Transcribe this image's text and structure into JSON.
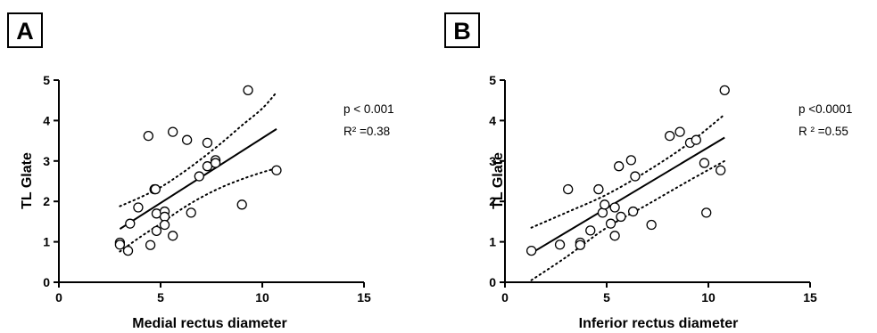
{
  "chart_data": [
    {
      "type": "scatter",
      "panel": "A",
      "xlabel": "Medial rectus diameter",
      "ylabel": "TL Glate",
      "xlim": [
        0,
        15
      ],
      "ylim": [
        0,
        5
      ],
      "xticks": [
        0,
        5,
        10,
        15
      ],
      "yticks": [
        0,
        1,
        2,
        3,
        4,
        5
      ],
      "annotations": [
        "p < 0.001",
        "R² =0.38"
      ],
      "points": [
        {
          "x": 3.0,
          "y": 0.98
        },
        {
          "x": 3.0,
          "y": 0.93
        },
        {
          "x": 3.4,
          "y": 0.78
        },
        {
          "x": 3.5,
          "y": 1.45
        },
        {
          "x": 3.9,
          "y": 1.85
        },
        {
          "x": 4.4,
          "y": 3.62
        },
        {
          "x": 4.5,
          "y": 0.92
        },
        {
          "x": 4.7,
          "y": 2.3
        },
        {
          "x": 4.75,
          "y": 2.3
        },
        {
          "x": 4.8,
          "y": 1.7
        },
        {
          "x": 4.8,
          "y": 1.27
        },
        {
          "x": 5.2,
          "y": 1.75
        },
        {
          "x": 5.2,
          "y": 1.62
        },
        {
          "x": 5.2,
          "y": 1.42
        },
        {
          "x": 5.6,
          "y": 3.72
        },
        {
          "x": 5.6,
          "y": 1.15
        },
        {
          "x": 6.3,
          "y": 3.52
        },
        {
          "x": 6.5,
          "y": 1.72
        },
        {
          "x": 6.9,
          "y": 2.62
        },
        {
          "x": 7.3,
          "y": 2.87
        },
        {
          "x": 7.3,
          "y": 3.45
        },
        {
          "x": 7.7,
          "y": 3.02
        },
        {
          "x": 7.7,
          "y": 2.95
        },
        {
          "x": 9.0,
          "y": 1.92
        },
        {
          "x": 9.3,
          "y": 4.75
        },
        {
          "x": 10.7,
          "y": 2.77
        }
      ],
      "fit": {
        "x": [
          3.0,
          10.7
        ],
        "y": [
          1.32,
          3.79
        ]
      },
      "ci_upper": {
        "x": [
          3.0,
          4.0,
          5.0,
          6.0,
          7.0,
          8.0,
          9.0,
          10.0,
          10.7
        ],
        "y": [
          1.88,
          2.1,
          2.35,
          2.68,
          3.05,
          3.45,
          3.88,
          4.3,
          4.7
        ]
      },
      "ci_lower": {
        "x": [
          3.0,
          4.0,
          5.0,
          6.0,
          7.0,
          8.0,
          9.0,
          10.0,
          10.7
        ],
        "y": [
          0.76,
          1.12,
          1.45,
          1.8,
          2.1,
          2.35,
          2.55,
          2.72,
          2.82
        ]
      }
    },
    {
      "type": "scatter",
      "panel": "B",
      "xlabel": "Inferior rectus diameter",
      "ylabel": "TL Glate",
      "xlim": [
        0,
        15
      ],
      "ylim": [
        0,
        5
      ],
      "xticks": [
        0,
        5,
        10,
        15
      ],
      "yticks": [
        0,
        1,
        2,
        3,
        4,
        5
      ],
      "annotations": [
        "p <0.0001",
        "R ² =0.55"
      ],
      "points": [
        {
          "x": 1.3,
          "y": 0.78
        },
        {
          "x": 2.7,
          "y": 0.93
        },
        {
          "x": 3.1,
          "y": 2.3
        },
        {
          "x": 3.7,
          "y": 0.98
        },
        {
          "x": 3.7,
          "y": 0.92
        },
        {
          "x": 4.2,
          "y": 1.28
        },
        {
          "x": 4.6,
          "y": 2.3
        },
        {
          "x": 4.8,
          "y": 1.72
        },
        {
          "x": 4.9,
          "y": 1.92
        },
        {
          "x": 5.2,
          "y": 1.45
        },
        {
          "x": 5.4,
          "y": 1.85
        },
        {
          "x": 5.4,
          "y": 1.15
        },
        {
          "x": 5.6,
          "y": 2.87
        },
        {
          "x": 5.7,
          "y": 1.62
        },
        {
          "x": 6.2,
          "y": 3.02
        },
        {
          "x": 6.3,
          "y": 1.75
        },
        {
          "x": 6.4,
          "y": 2.62
        },
        {
          "x": 7.2,
          "y": 1.42
        },
        {
          "x": 8.1,
          "y": 3.62
        },
        {
          "x": 8.6,
          "y": 3.72
        },
        {
          "x": 9.1,
          "y": 3.45
        },
        {
          "x": 9.4,
          "y": 3.52
        },
        {
          "x": 9.8,
          "y": 2.95
        },
        {
          "x": 9.9,
          "y": 1.72
        },
        {
          "x": 10.6,
          "y": 2.77
        },
        {
          "x": 10.8,
          "y": 4.75
        }
      ],
      "fit": {
        "x": [
          1.3,
          10.8
        ],
        "y": [
          0.72,
          3.58
        ]
      },
      "ci_upper": {
        "x": [
          1.3,
          3.0,
          5.0,
          7.0,
          9.0,
          10.8
        ],
        "y": [
          1.35,
          1.72,
          2.17,
          2.75,
          3.42,
          4.15
        ]
      },
      "ci_lower": {
        "x": [
          1.3,
          3.0,
          5.0,
          7.0,
          9.0,
          10.8
        ],
        "y": [
          0.05,
          0.62,
          1.35,
          1.92,
          2.5,
          3.0
        ]
      }
    }
  ]
}
